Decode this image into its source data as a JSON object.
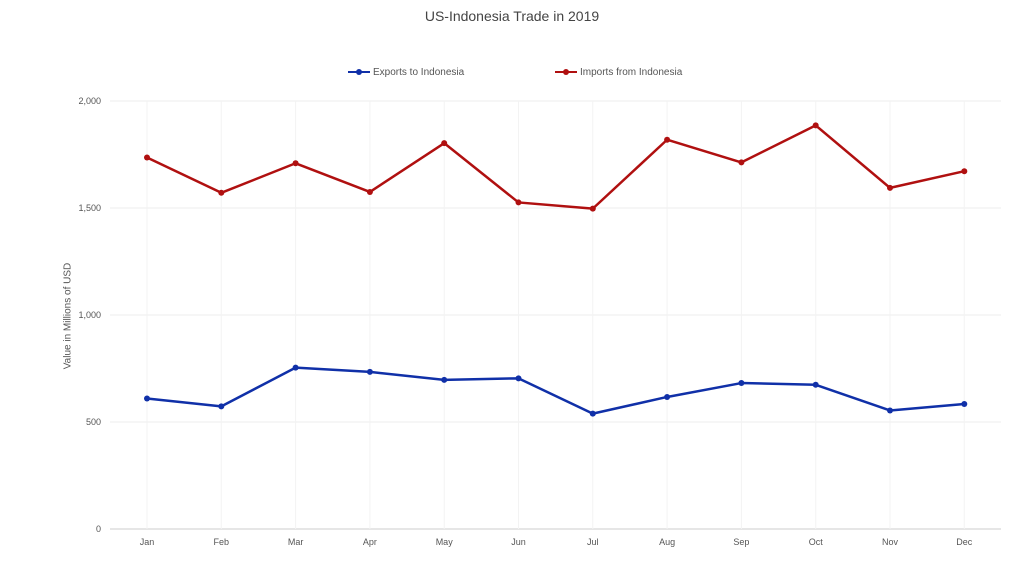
{
  "chart_data": {
    "type": "line",
    "title": "US-Indonesia Trade in 2019",
    "xlabel": "",
    "ylabel": "Value in Millions of USD",
    "categories": [
      "Jan",
      "Feb",
      "Mar",
      "Apr",
      "May",
      "Jun",
      "Jul",
      "Aug",
      "Sep",
      "Oct",
      "Nov",
      "Dec"
    ],
    "ylim": [
      0,
      2000
    ],
    "yticks": [
      0,
      500,
      1000,
      1500,
      2000
    ],
    "ytick_labels": [
      "0",
      "500",
      "1,000",
      "1,500",
      "2,000"
    ],
    "grid": true,
    "legend_position": "top",
    "series": [
      {
        "name": "Exports to Indonesia",
        "color": "#1030a8",
        "values": [
          610,
          573,
          754,
          734,
          697,
          704,
          539,
          617,
          682,
          674,
          554,
          584
        ]
      },
      {
        "name": "Imports from Indonesia",
        "color": "#b01010",
        "values": [
          1736,
          1571,
          1709,
          1575,
          1803,
          1526,
          1497,
          1819,
          1713,
          1886,
          1594,
          1672
        ]
      }
    ]
  }
}
